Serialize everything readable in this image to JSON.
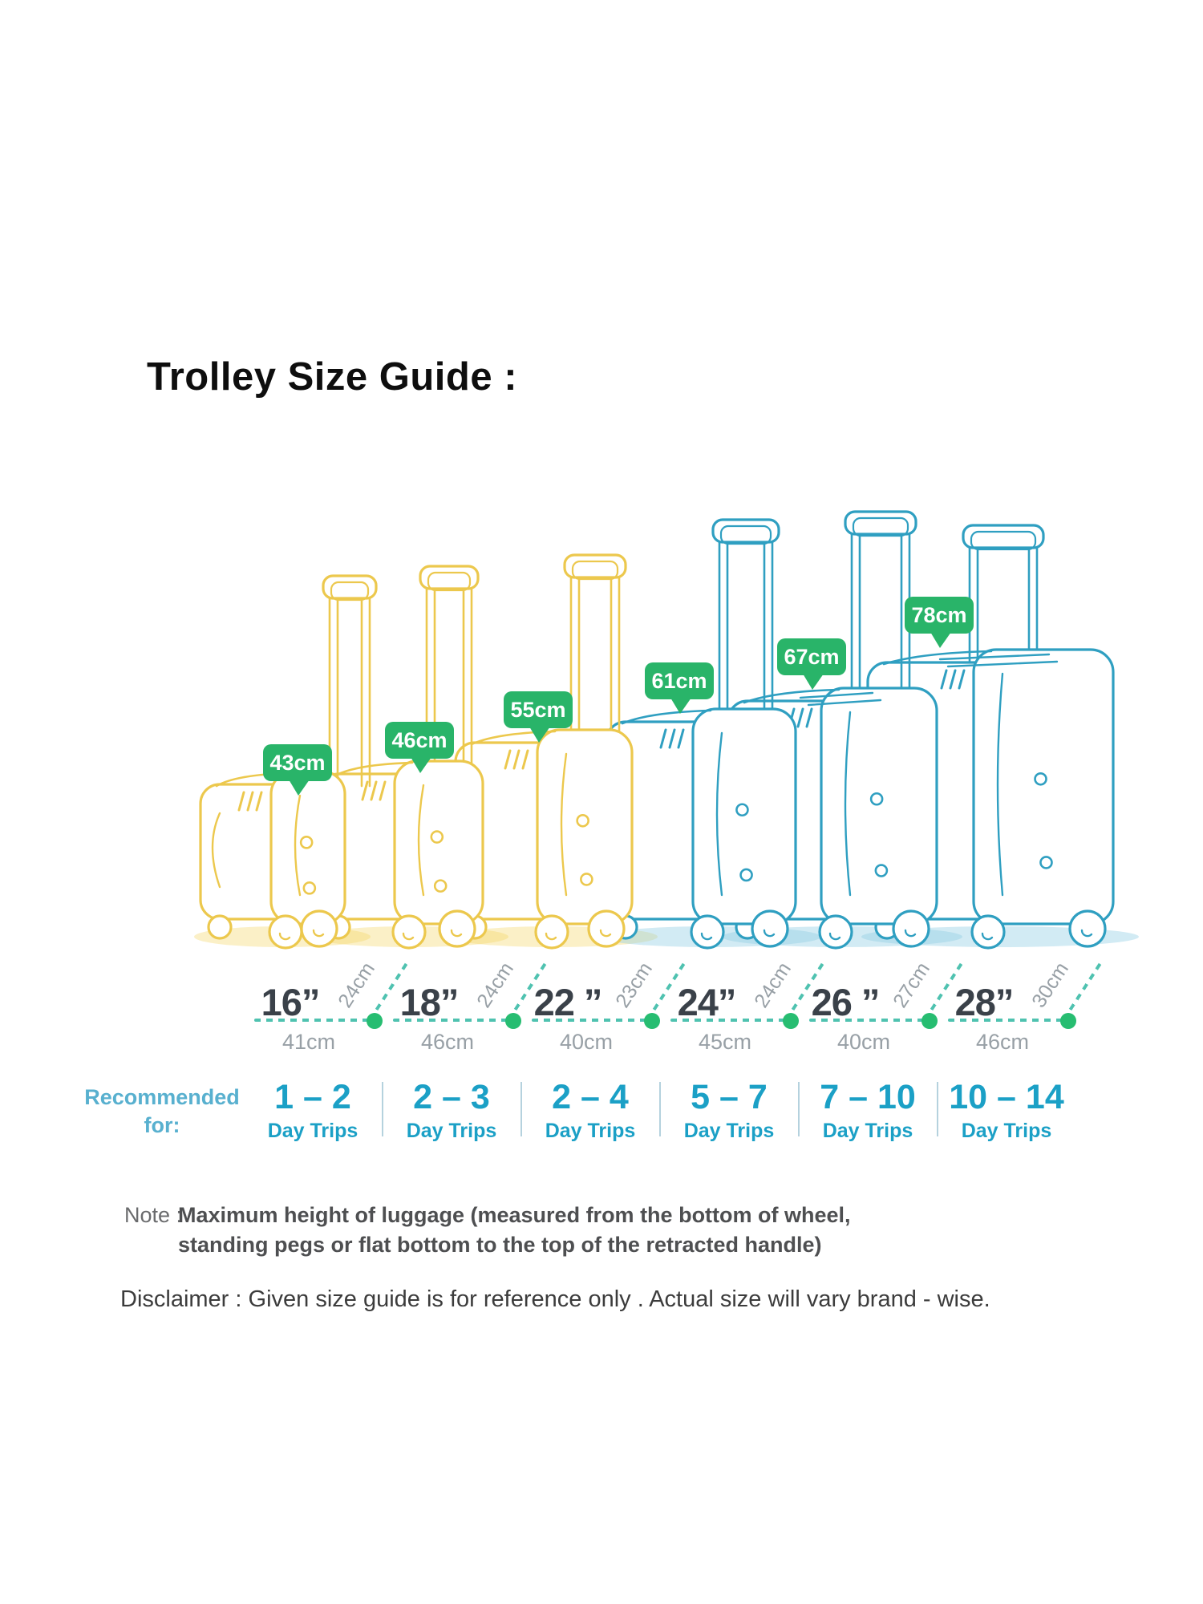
{
  "title": "Trolley Size Guide :",
  "colors": {
    "luggage_yellow": "#ECC84D",
    "luggage_blue": "#2F9FC1",
    "badge_green": "#29B469",
    "dot_green": "#27BD71",
    "dash_teal": "#4FC2B0",
    "day_teal": "#1BA0C6",
    "number_dark": "#3A4149",
    "label_gray": "#98A0A6",
    "recommended_blue": "#58B0CF",
    "shadow_yellow": "rgba(244,211,94,0.35)",
    "shadow_blue": "rgba(142,205,228,0.40)"
  },
  "luggage": {
    "items": [
      {
        "size_label": "16”",
        "height_label": "43cm",
        "width_label": "41cm",
        "depth_label": "24cm",
        "days_label": "1 – 2",
        "days_sub": "Day Trips",
        "color_group": "yellow"
      },
      {
        "size_label": "18”",
        "height_label": "46cm",
        "width_label": "46cm",
        "depth_label": "24cm",
        "days_label": "2 – 3",
        "days_sub": "Day Trips",
        "color_group": "yellow"
      },
      {
        "size_label": "22 ”",
        "height_label": "55cm",
        "width_label": "40cm",
        "depth_label": "23cm",
        "days_label": "2 – 4",
        "days_sub": "Day Trips",
        "color_group": "yellow"
      },
      {
        "size_label": "24”",
        "height_label": "61cm",
        "width_label": "45cm",
        "depth_label": "24cm",
        "days_label": "5 – 7",
        "days_sub": "Day Trips",
        "color_group": "blue"
      },
      {
        "size_label": "26 ”",
        "height_label": "67cm",
        "width_label": "40cm",
        "depth_label": "27cm",
        "days_label": "7 – 10",
        "days_sub": "Day Trips",
        "color_group": "blue"
      },
      {
        "size_label": "28”",
        "height_label": "78cm",
        "width_label": "46cm",
        "depth_label": "30cm",
        "days_label": "10 – 14",
        "days_sub": "Day Trips",
        "color_group": "blue"
      }
    ]
  },
  "recommended_for": {
    "line1": "Recommended",
    "line2": "for:"
  },
  "note": {
    "prefix": "Note :",
    "line1": "Maximum height of luggage (measured from the bottom of wheel,",
    "line2": "standing pegs or flat bottom to the top of the retracted handle)"
  },
  "disclaimer": "Disclaimer : Given size guide is for reference only . Actual size will vary brand - wise."
}
